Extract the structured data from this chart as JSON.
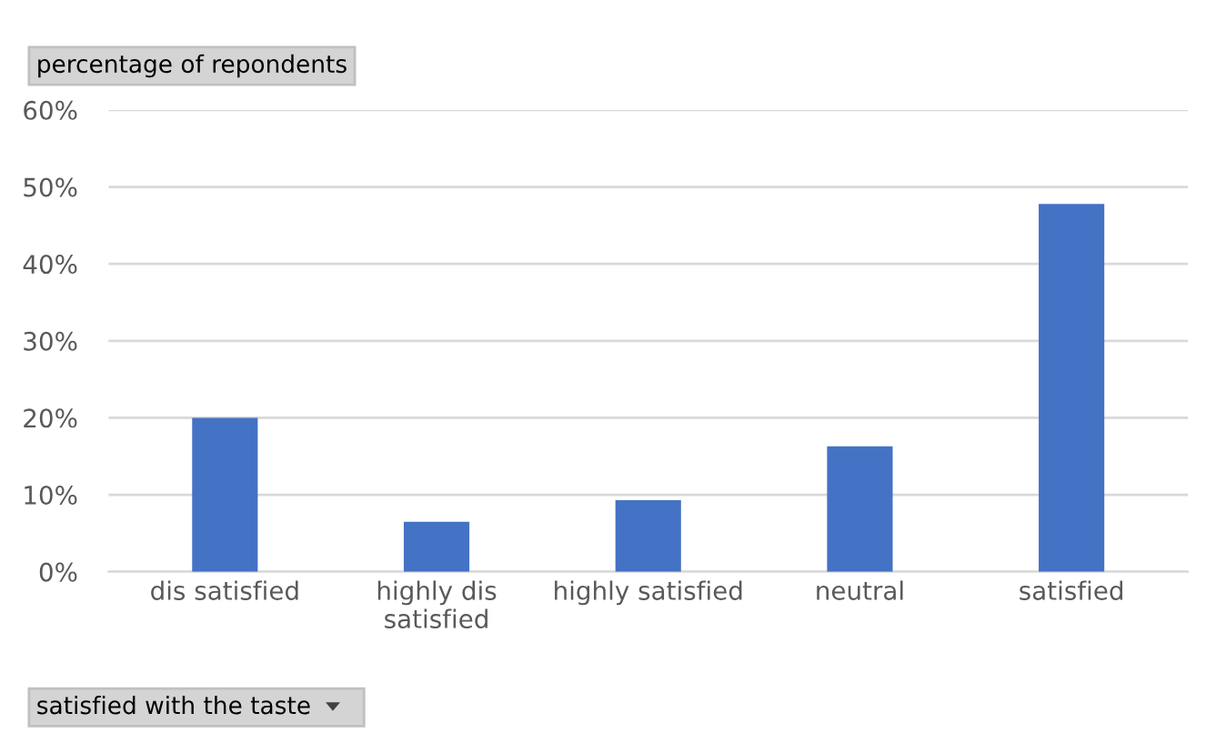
{
  "chart_data": {
    "type": "bar",
    "ylabel": "percentage of repondents",
    "xlabel": "satisfied with the taste",
    "categories": [
      "dis satisfied",
      "highly dis\nsatisfied",
      "highly satisfied",
      "neutral",
      "satisfied"
    ],
    "values": [
      20,
      6.5,
      9.3,
      16.3,
      47.8
    ],
    "color": "#4472c4",
    "ylim": [
      0,
      60
    ],
    "yticks": [
      {
        "value": 0,
        "label": "0%"
      },
      {
        "value": 10,
        "label": "10%"
      },
      {
        "value": 20,
        "label": "20%"
      },
      {
        "value": 30,
        "label": "30%"
      },
      {
        "value": 40,
        "label": "40%"
      },
      {
        "value": 50,
        "label": "50%"
      },
      {
        "value": 60,
        "label": "60%"
      }
    ],
    "grid": "y",
    "legend": false
  }
}
